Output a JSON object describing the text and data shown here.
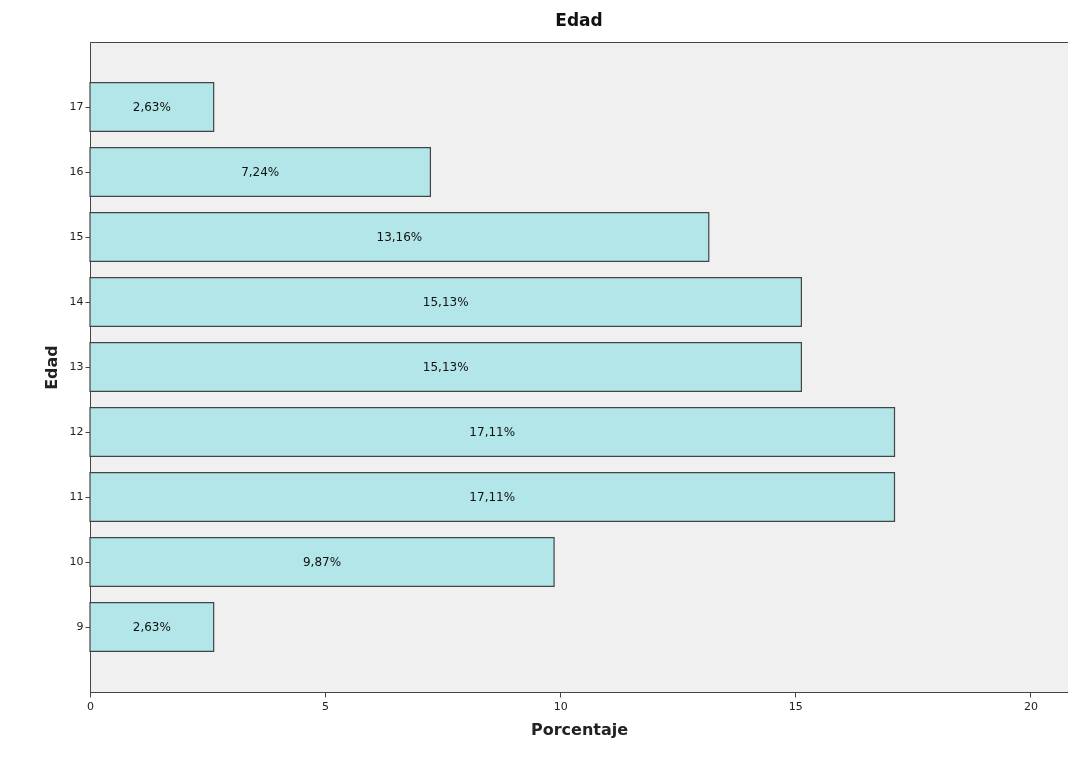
{
  "chart_data": {
    "type": "bar",
    "orientation": "horizontal",
    "title": "Edad",
    "xlabel": "Porcentaje",
    "ylabel": "Edad",
    "categories": [
      "17",
      "16",
      "15",
      "14",
      "13",
      "12",
      "11",
      "10",
      "9"
    ],
    "series": [
      {
        "color": "#b3e6e8",
        "values": [
          2.63,
          7.24,
          13.16,
          15.13,
          15.13,
          17.11,
          17.11,
          9.87,
          2.63
        ],
        "value_labels": [
          "2,63%",
          "7,24%",
          "13,16%",
          "15,13%",
          "15,13%",
          "17,11%",
          "17,11%",
          "9,87%",
          "2,63%"
        ]
      }
    ],
    "xlim": [
      0,
      20.8
    ],
    "xticks": [
      0,
      5,
      10,
      15,
      20
    ],
    "grid": false
  }
}
